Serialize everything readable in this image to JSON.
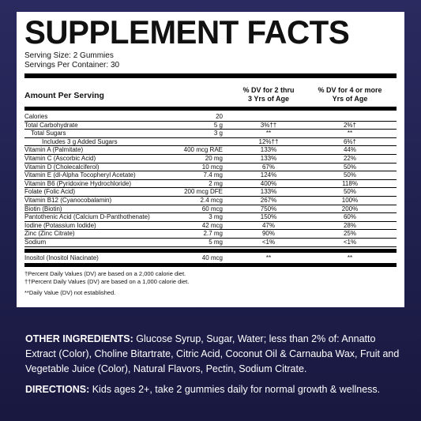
{
  "title": "SUPPLEMENT FACTS",
  "serving_size": "Serving Size: 2 Gummies",
  "servings_per_container": "Servings Per Container: 30",
  "header": {
    "amount_per_serving": "Amount Per Serving",
    "dv_kids": "% DV for 2 thru\n3 Yrs of Age",
    "dv_older": "% DV for 4 or more\nYrs of Age"
  },
  "rows": [
    {
      "name": "Calories",
      "amount": "20",
      "dv_kids": "",
      "dv_older": "",
      "indent": 0
    },
    {
      "name": "Total Carbohydrate",
      "amount": "5 g",
      "dv_kids": "3%††",
      "dv_older": "2%†",
      "indent": 0
    },
    {
      "name": "Total Sugars",
      "amount": "3 g",
      "dv_kids": "**",
      "dv_older": "**",
      "indent": 1
    },
    {
      "name": "Includes 3 g Added Sugars",
      "amount": "",
      "dv_kids": "12%††",
      "dv_older": "6%†",
      "indent": 2
    },
    {
      "name": "Vitamin A (Palmitate)",
      "amount": "400 mcg RAE",
      "dv_kids": "133%",
      "dv_older": "44%",
      "indent": 0
    },
    {
      "name": "Vitamin C (Ascorbic Acid)",
      "amount": "20 mg",
      "dv_kids": "133%",
      "dv_older": "22%",
      "indent": 0
    },
    {
      "name": "Vitamin D (Cholecalciferol)",
      "amount": "10 mcg",
      "dv_kids": "67%",
      "dv_older": "50%",
      "indent": 0
    },
    {
      "name": "Vitamin E (dl-Alpha Tocopheryl Acetate)",
      "amount": "7.4 mg",
      "dv_kids": "124%",
      "dv_older": "50%",
      "indent": 0
    },
    {
      "name": "Vitamin B6 (Pyridoxine Hydrochloride)",
      "amount": "2 mg",
      "dv_kids": "400%",
      "dv_older": "118%",
      "indent": 0
    },
    {
      "name": "Folate (Folic Acid)",
      "amount": "200 mcg DFE",
      "dv_kids": "133%",
      "dv_older": "50%",
      "indent": 0
    },
    {
      "name": "Vitamin B12 (Cyanocobalamin)",
      "amount": "2.4 mcg",
      "dv_kids": "267%",
      "dv_older": "100%",
      "indent": 0
    },
    {
      "name": "Biotin (Biotin)",
      "amount": "60 mcg",
      "dv_kids": "750%",
      "dv_older": "200%",
      "indent": 0
    },
    {
      "name": "Pantothenic Acid (Calcium D-Panthothenate)",
      "amount": "3 mg",
      "dv_kids": "150%",
      "dv_older": "60%",
      "indent": 0
    },
    {
      "name": "Iodine (Potassium Iodide)",
      "amount": "42 mcg",
      "dv_kids": "47%",
      "dv_older": "28%",
      "indent": 0
    },
    {
      "name": "Zinc (Zinc Citrate)",
      "amount": "2.7 mg",
      "dv_kids": "90%",
      "dv_older": "25%",
      "indent": 0
    },
    {
      "name": "Sodium",
      "amount": "5 mg",
      "dv_kids": "<1%",
      "dv_older": "<1%",
      "indent": 0
    }
  ],
  "inositol": {
    "name": "Inositol (Inositol Niacinate)",
    "amount": "40 mcg",
    "dv_kids": "**",
    "dv_older": "**"
  },
  "notes": {
    "dagger": "†Percent Daily Values (DV) are based on a 2,000 calorie diet.",
    "double_dagger": "††Percent Daily Values (DV) are based on a 1,000 calorie diet.",
    "asterisk": "**Daily Value (DV) not established."
  },
  "other_ingredients": {
    "label": "OTHER INGREDIENTS:",
    "text": " Glucose Syrup, Sugar, Water; less than 2% of: Annatto Extract (Color), Choline Bitartrate, Citric Acid, Coconut Oil & Carnauba Wax, Fruit and Vegetable Juice (Color), Natural Flavors, Pectin, Sodium Citrate."
  },
  "directions": {
    "label": "DIRECTIONS:",
    "text": " Kids ages 2+, take 2 gummies daily for normal growth & wellness."
  },
  "colors": {
    "background": "#23235a",
    "panel": "#ffffff",
    "text_on_dark": "#ffffff"
  }
}
